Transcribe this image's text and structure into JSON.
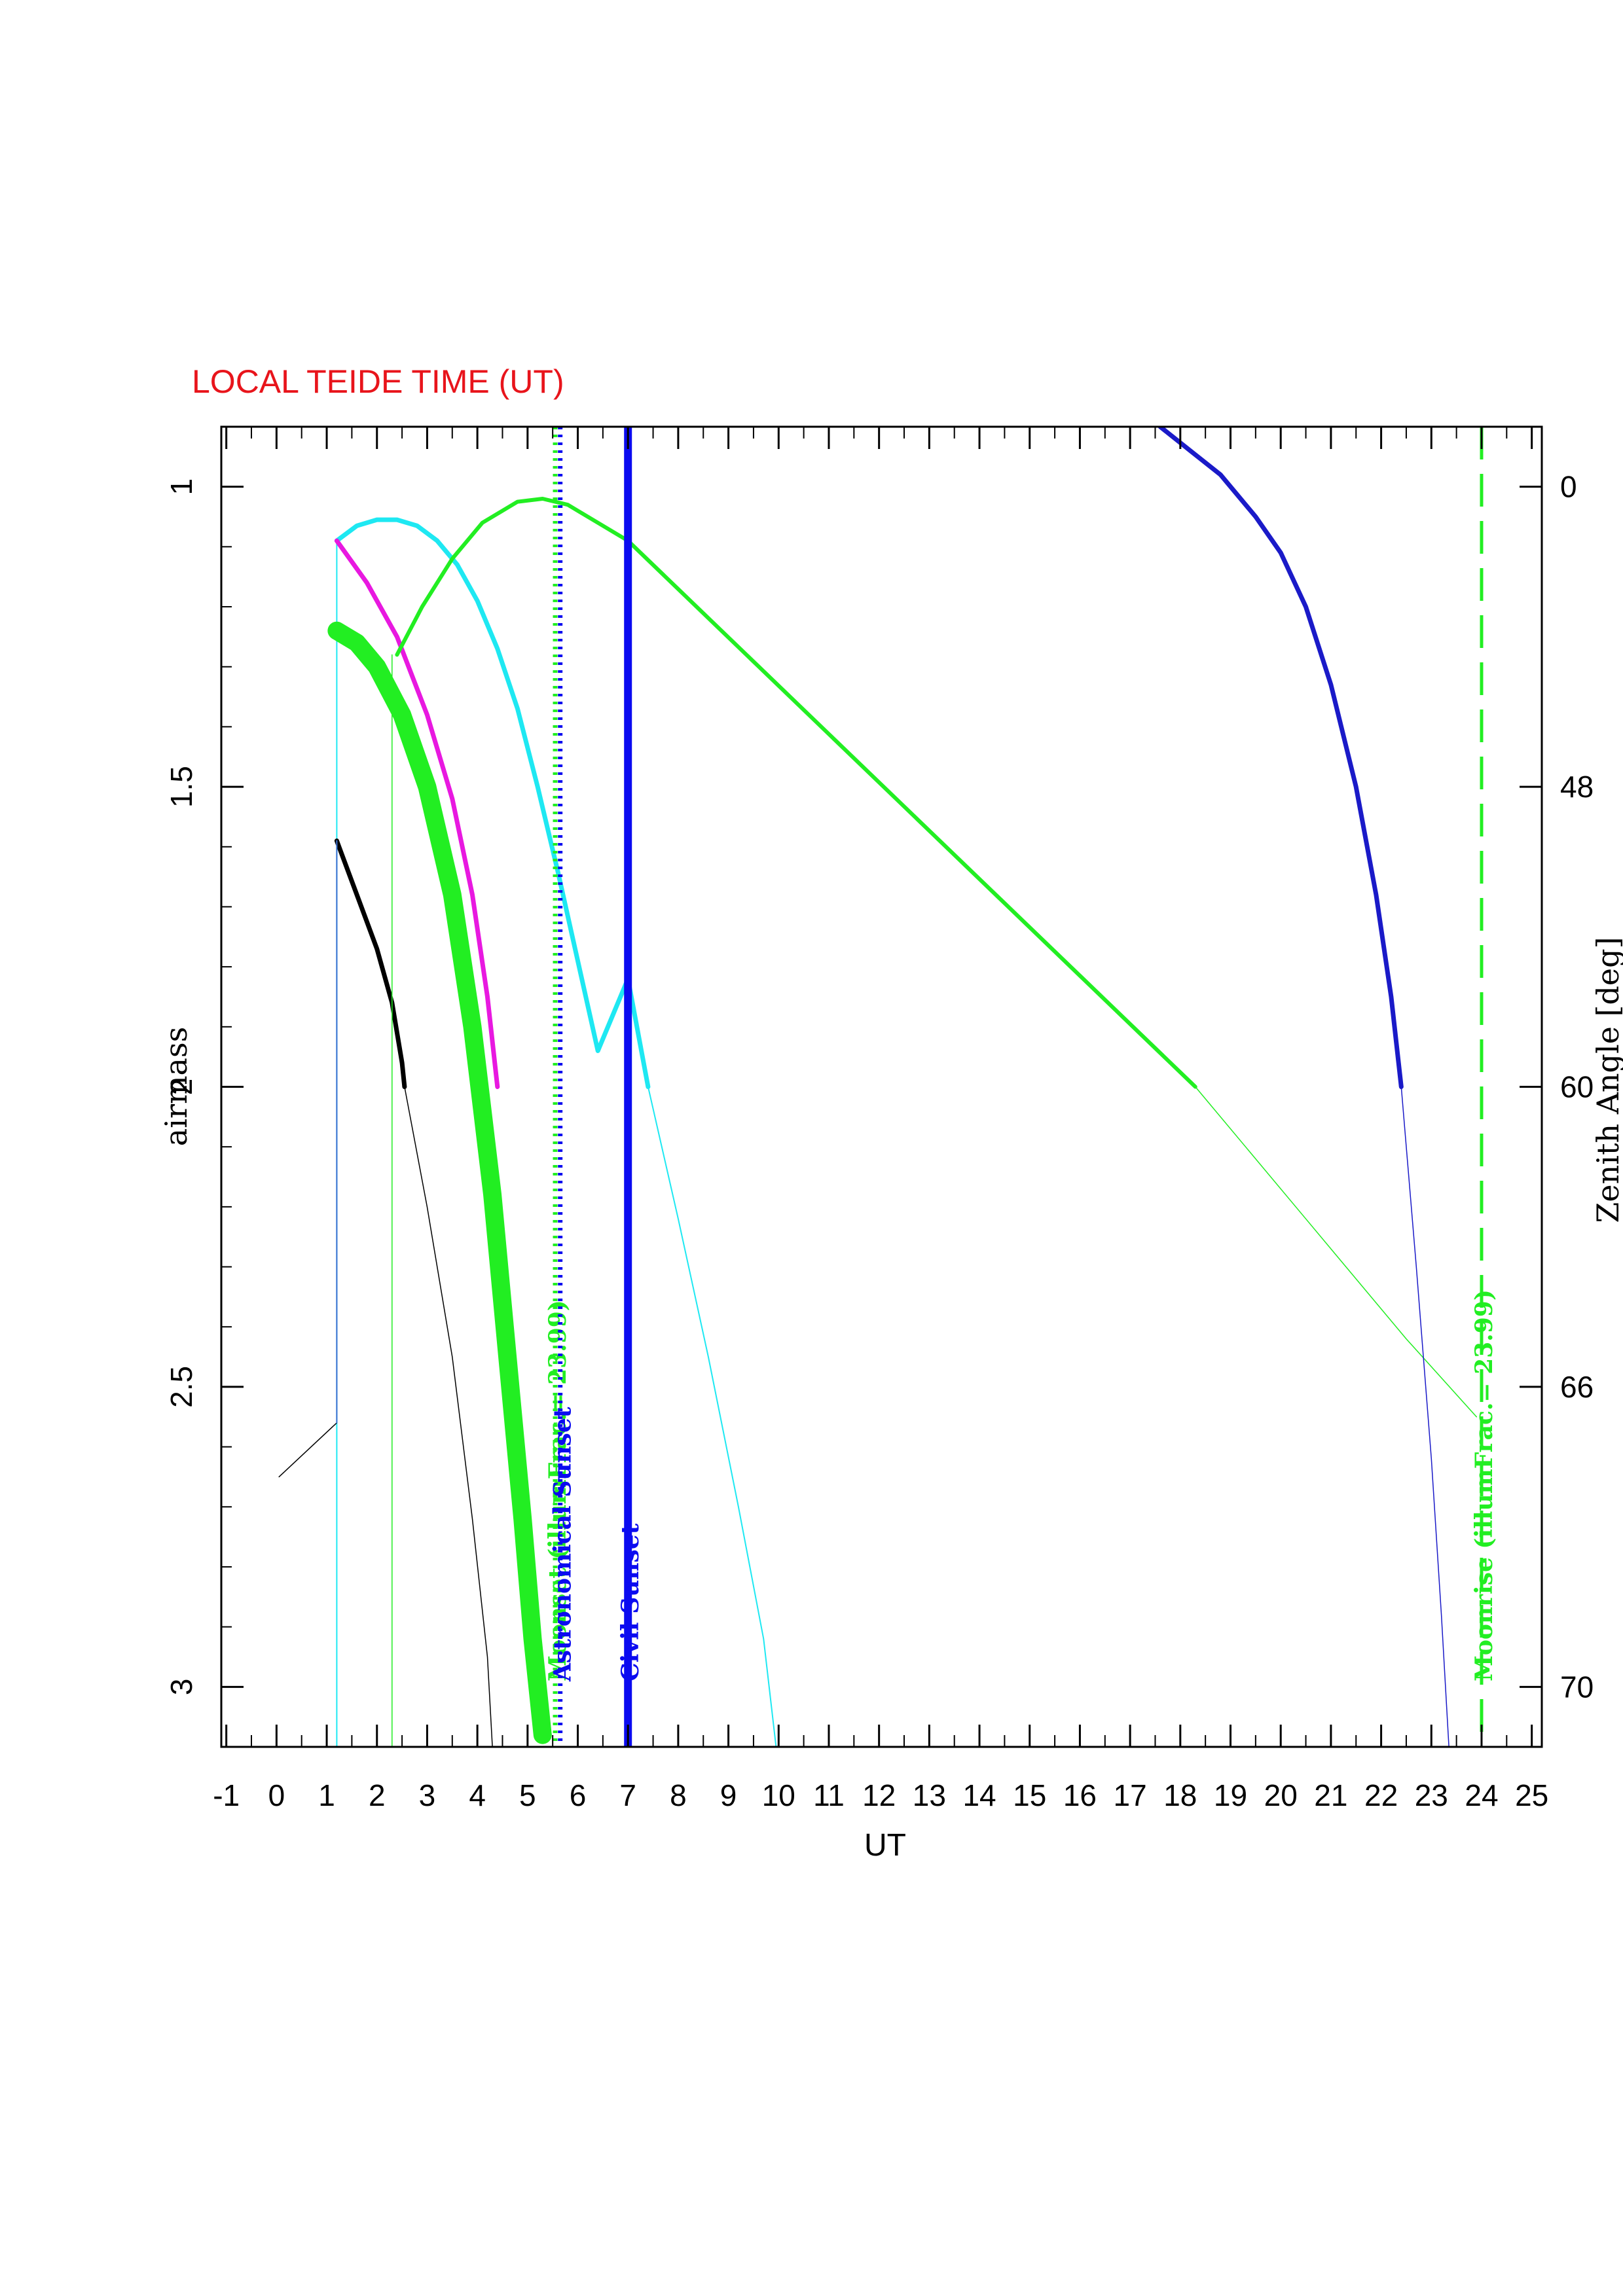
{
  "chart_data": {
    "type": "line",
    "title": "LOCAL TEIDE TIME (UT)",
    "xlabel": "UT",
    "ylabel": "airmass",
    "y2label": "Zenith Angle [deg]",
    "xlim": [
      -1.1,
      25.2
    ],
    "ylim": [
      3.1,
      0.9
    ],
    "x_ticks": [
      -1,
      0,
      1,
      2,
      3,
      4,
      5,
      6,
      7,
      8,
      9,
      10,
      11,
      12,
      13,
      14,
      15,
      16,
      17,
      18,
      19,
      20,
      21,
      22,
      23,
      24,
      25
    ],
    "y_ticks": [
      1,
      1.5,
      2,
      2.5,
      3
    ],
    "y2_ticks": [
      {
        "airmass": 1.0,
        "label": "0"
      },
      {
        "airmass": 1.5,
        "label": "48"
      },
      {
        "airmass": 2.0,
        "label": "60"
      },
      {
        "airmass": 2.5,
        "label": "66"
      },
      {
        "airmass": 3.0,
        "label": "70"
      }
    ],
    "colors": {
      "title": "#e8141b",
      "civil_sunset": "#0b0bf0",
      "astronomical_sunset": "#0b0bf0",
      "moon": "#22ee22",
      "series_cyan": "#1ee8f2",
      "series_magenta": "#e818e0",
      "series_green": "#22ee22",
      "series_black": "#000000",
      "series_navy": "#1a1ac8"
    },
    "events": [
      {
        "x": 5.55,
        "label": "Moonset (illumFrac.= 23.99)",
        "style": "dotted",
        "color": "#22ee22"
      },
      {
        "x": 5.65,
        "label": "Astronomical Sunset",
        "style": "dotted",
        "color": "#0b0bf0"
      },
      {
        "x": 7.0,
        "label": "Civil Sunset",
        "style": "solid",
        "color": "#0b0bf0"
      },
      {
        "x": 24.0,
        "label": "Moonrise (illumFrac.= 23.99)",
        "style": "dashed",
        "color": "#22ee22"
      }
    ],
    "series": [
      {
        "color": "#1ee8f2",
        "width": 7,
        "points": [
          [
            1.2,
            1.09
          ],
          [
            1.6,
            1.065
          ],
          [
            2.0,
            1.055
          ],
          [
            2.4,
            1.055
          ],
          [
            2.8,
            1.065
          ],
          [
            3.2,
            1.09
          ],
          [
            3.6,
            1.13
          ],
          [
            4.0,
            1.19
          ],
          [
            4.4,
            1.27
          ],
          [
            4.8,
            1.37
          ],
          [
            5.2,
            1.5
          ],
          [
            5.6,
            1.64
          ],
          [
            6.0,
            1.79
          ],
          [
            6.4,
            1.94
          ],
          [
            7.0,
            1.82
          ],
          [
            7.4,
            2.0
          ]
        ]
      },
      {
        "color": "#1ee8f2",
        "width": 2,
        "points": [
          [
            7.4,
            2.0
          ],
          [
            8.0,
            2.22
          ],
          [
            8.6,
            2.45
          ],
          [
            9.2,
            2.7
          ],
          [
            9.7,
            2.92
          ],
          [
            9.95,
            3.1
          ]
        ]
      },
      {
        "color": "#1ee8f2",
        "width": 2,
        "points": [
          [
            1.2,
            1.09
          ],
          [
            1.2,
            3.1
          ]
        ]
      },
      {
        "color": "#e818e0",
        "width": 7,
        "points": [
          [
            1.2,
            1.09
          ],
          [
            1.8,
            1.16
          ],
          [
            2.4,
            1.25
          ],
          [
            3.0,
            1.38
          ],
          [
            3.5,
            1.52
          ],
          [
            3.9,
            1.68
          ],
          [
            4.2,
            1.85
          ],
          [
            4.4,
            2.0
          ]
        ]
      },
      {
        "color": "#000000",
        "width": 7,
        "points": [
          [
            1.2,
            1.59
          ],
          [
            1.6,
            1.68
          ],
          [
            2.0,
            1.77
          ],
          [
            2.3,
            1.86
          ],
          [
            2.5,
            1.96
          ],
          [
            2.55,
            2.0
          ]
        ]
      },
      {
        "color": "#000000",
        "width": 1.5,
        "points": [
          [
            2.55,
            2.0
          ],
          [
            3.0,
            2.2
          ],
          [
            3.5,
            2.45
          ],
          [
            3.9,
            2.72
          ],
          [
            4.2,
            2.95
          ],
          [
            4.3,
            3.1
          ]
        ]
      },
      {
        "color": "#000000",
        "width": 1.5,
        "points": [
          [
            0.05,
            2.65
          ],
          [
            1.2,
            2.56
          ]
        ]
      },
      {
        "color": "#3a6fd0",
        "width": 2,
        "points": [
          [
            1.2,
            1.59
          ],
          [
            1.2,
            2.56
          ]
        ]
      },
      {
        "color": "#22ee22",
        "width": 6,
        "points": [
          [
            2.4,
            1.28
          ],
          [
            2.9,
            1.2
          ],
          [
            3.5,
            1.12
          ],
          [
            4.1,
            1.06
          ],
          [
            4.8,
            1.025
          ],
          [
            5.3,
            1.02
          ],
          [
            5.8,
            1.03
          ],
          [
            6.4,
            1.06
          ],
          [
            7.0,
            1.09
          ],
          [
            18.3,
            2.0
          ]
        ]
      },
      {
        "color": "#22ee22",
        "width": 1.5,
        "points": [
          [
            18.3,
            2.0
          ],
          [
            20.5,
            2.22
          ],
          [
            22.5,
            2.42
          ],
          [
            23.9,
            2.55
          ]
        ]
      },
      {
        "color": "#22ee22",
        "width": 1.5,
        "points": [
          [
            2.3,
            1.28
          ],
          [
            2.3,
            3.1
          ]
        ]
      },
      {
        "color": "#22ee22",
        "width": 28,
        "points": [
          [
            1.2,
            1.24
          ],
          [
            1.6,
            1.26
          ],
          [
            2.0,
            1.3
          ],
          [
            2.5,
            1.38
          ],
          [
            3.0,
            1.5
          ],
          [
            3.5,
            1.68
          ],
          [
            3.9,
            1.9
          ],
          [
            4.3,
            2.18
          ],
          [
            4.6,
            2.45
          ],
          [
            4.9,
            2.72
          ],
          [
            5.1,
            2.92
          ],
          [
            5.3,
            3.08
          ]
        ]
      },
      {
        "color": "#1a1ac8",
        "width": 7,
        "points": [
          [
            17.6,
            0.9
          ],
          [
            18.2,
            0.94
          ],
          [
            18.8,
            0.98
          ],
          [
            19.5,
            1.05
          ],
          [
            20.0,
            1.11
          ],
          [
            20.5,
            1.2
          ],
          [
            21.0,
            1.33
          ],
          [
            21.5,
            1.5
          ],
          [
            21.9,
            1.68
          ],
          [
            22.2,
            1.85
          ],
          [
            22.4,
            2.0
          ]
        ]
      },
      {
        "color": "#1a1ac8",
        "width": 1.5,
        "points": [
          [
            22.4,
            2.0
          ],
          [
            22.7,
            2.3
          ],
          [
            23.0,
            2.62
          ],
          [
            23.2,
            2.88
          ],
          [
            23.35,
            3.1
          ]
        ]
      }
    ]
  }
}
